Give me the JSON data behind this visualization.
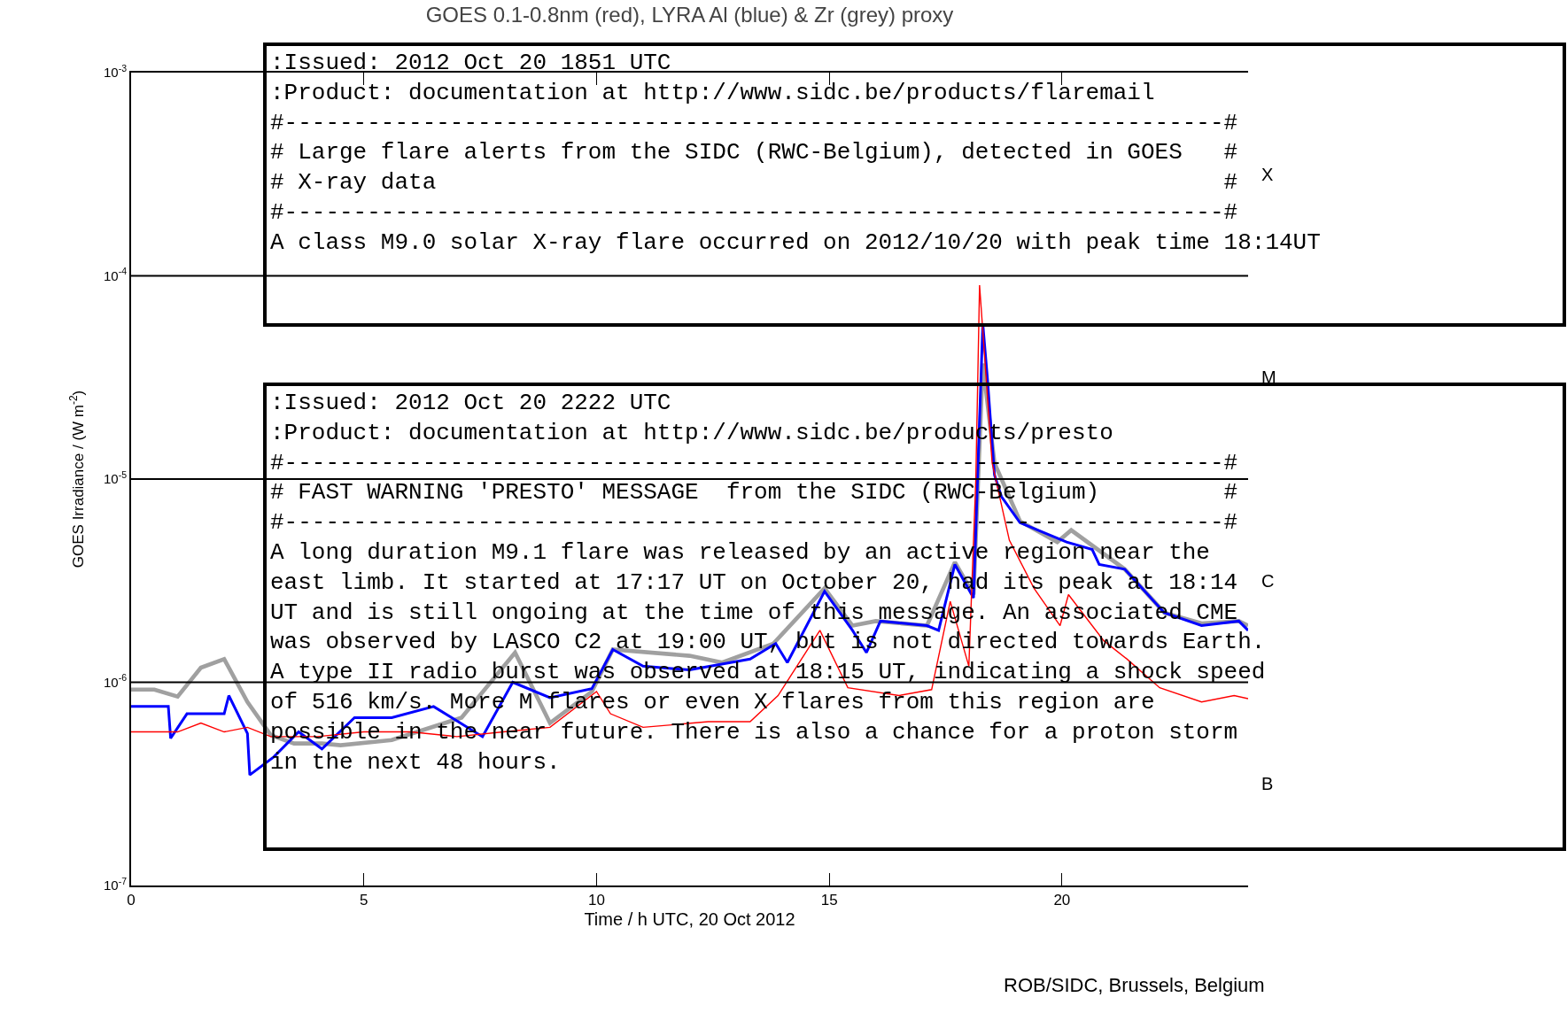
{
  "chart_data": {
    "type": "line",
    "title": "GOES 0.1-0.8nm (red), LYRA Al (blue) & Zr (grey) proxy",
    "xlabel": "Time / h UTC, 20 Oct 2012",
    "ylabel": "GOES Irradiance / (W m$^{-2}$)",
    "log": "y",
    "xlim": [
      0,
      24
    ],
    "xticks": [
      0,
      5,
      10,
      15,
      20
    ],
    "ylim": [
      1e-07,
      0.001
    ],
    "yticks": [
      {
        "value": 1e-07,
        "label": "10$^{-7}$"
      },
      {
        "value": 1e-06,
        "label": "10$^{-6}$"
      },
      {
        "value": 1e-05,
        "label": "10$^{-5}$"
      },
      {
        "value": 0.0001,
        "label": "10$^{-4}$"
      },
      {
        "value": 0.001,
        "label": "10$^{-3}$"
      }
    ],
    "marker": "none",
    "line_style": "solid",
    "ref_lines": [
      {
        "axis": "y",
        "value": 1e-06,
        "color": "#000000"
      },
      {
        "axis": "y",
        "value": 1e-05,
        "color": "#000000"
      },
      {
        "axis": "y",
        "value": 0.0001,
        "color": "#000000"
      }
    ],
    "series": [
      {
        "color": "#a0a0a0",
        "x": [
          0,
          0.5,
          1.0,
          1.5,
          2.0,
          2.5,
          3.0,
          3.5,
          4.1,
          4.5,
          5.6,
          7.1,
          8.25,
          9.0,
          9.9,
          10.35,
          12.0,
          12.7,
          13.8,
          14.9,
          15.5,
          16.0,
          17.1,
          17.7,
          18.1,
          18.3,
          18.55,
          19.1,
          19.9,
          20.2,
          21.35,
          22.2,
          23.0,
          23.8,
          24.0
        ],
        "values": [
          9.2e-07,
          9.2e-07,
          8.5e-07,
          1.18e-06,
          1.3e-06,
          8e-07,
          5.5e-07,
          5e-07,
          5e-07,
          4.9e-07,
          5.2e-07,
          6.7e-07,
          1.4e-06,
          6.3e-07,
          9e-07,
          1.45e-06,
          1.35e-06,
          1.25e-06,
          1.55e-06,
          2.9e-06,
          1.9e-06,
          2e-06,
          1.9e-06,
          3.9e-06,
          2.7e-06,
          3.7e-05,
          1.2e-05,
          6.2e-06,
          4.9e-06,
          5.6e-06,
          3.6e-06,
          2.2e-06,
          1.95e-06,
          2e-06,
          1.9e-06
        ]
      },
      {
        "color": "#0000ff",
        "x": [
          0,
          0.8,
          0.85,
          1.2,
          2.0,
          2.1,
          2.5,
          2.55,
          3.07,
          3.6,
          4.1,
          4.8,
          5.6,
          6.5,
          7.55,
          8.2,
          9.0,
          9.9,
          10.35,
          11.0,
          12.0,
          13.3,
          13.85,
          14.1,
          14.9,
          15.5,
          15.8,
          16.1,
          17.1,
          17.35,
          17.7,
          18.1,
          18.3,
          18.4,
          18.55,
          18.7,
          19.1,
          20.1,
          20.65,
          20.8,
          21.35,
          22.2,
          23.0,
          23.8,
          24.0
        ],
        "values": [
          7.6e-07,
          7.6e-07,
          5.3e-07,
          7e-07,
          7e-07,
          8.6e-07,
          5.6e-07,
          3.5e-07,
          4.3e-07,
          5.7e-07,
          4.7e-07,
          6.7e-07,
          6.7e-07,
          7.6e-07,
          5.4e-07,
          1e-06,
          8.4e-07,
          9.3e-07,
          1.45e-06,
          1.2e-06,
          1.15e-06,
          1.3e-06,
          1.55e-06,
          1.25e-06,
          2.8e-06,
          1.8e-06,
          1.4e-06,
          2e-06,
          1.9e-06,
          1.8e-06,
          3.8e-06,
          2.6e-06,
          5.8e-05,
          3.1e-05,
          1.05e-05,
          8.2e-06,
          6.1e-06,
          4.9e-06,
          4.5e-06,
          3.8e-06,
          3.6e-06,
          2.2e-06,
          1.9e-06,
          2e-06,
          1.8e-06
        ]
      },
      {
        "color": "#ff0000",
        "x": [
          0,
          1.0,
          1.5,
          2.0,
          2.5,
          3.0,
          4.0,
          5.0,
          6.0,
          7.0,
          8.0,
          9.0,
          10.0,
          10.3,
          11.0,
          12.4,
          13.3,
          13.9,
          14.8,
          15.4,
          16.5,
          17.2,
          17.6,
          18.0,
          18.15,
          18.23,
          18.5,
          18.87,
          19.4,
          19.96,
          20.14,
          20.9,
          21.4,
          22.1,
          23.0,
          23.7,
          24.0
        ],
        "values": [
          5.7e-07,
          5.7e-07,
          6.3e-07,
          5.7e-07,
          6e-07,
          5.4e-07,
          5.4e-07,
          5.7e-07,
          5.7e-07,
          5.4e-07,
          5.7e-07,
          6e-07,
          9e-07,
          7e-07,
          6e-07,
          6.4e-07,
          6.4e-07,
          8.6e-07,
          1.8e-06,
          9.4e-07,
          8.6e-07,
          9.2e-07,
          2.5e-06,
          1.2e-06,
          1e-05,
          9e-05,
          1.2e-05,
          5e-06,
          2.9e-06,
          1.9e-06,
          2.7e-06,
          1.6e-06,
          1.3e-06,
          9.4e-07,
          8e-07,
          8.6e-07,
          8.3e-07
        ]
      }
    ],
    "annotations": [
      ":Issued: 2012 Oct 20 1851 UTC\n:Product: documentation at http://www.sidc.be/products/flaremail\n#--------------------------------------------------------------------#\n# Large flare alerts from the SIDC (RWC-Belgium), detected in GOES   #\n# X-ray data                                                         #\n#--------------------------------------------------------------------#\nA class M9.0 solar X-ray flare occurred on 2012/10/20 with peak time 18:14UT",
      ":Issued: 2012 Oct 20 2222 UTC\n:Product: documentation at http://www.sidc.be/products/presto\n#--------------------------------------------------------------------#\n# FAST WARNING 'PRESTO' MESSAGE  from the SIDC (RWC-Belgium)         #\n#--------------------------------------------------------------------#\nA long duration M9.1 flare was released by an active region near the\neast limb. It started at 17:17 UT on October 20, had its peak at 18:14\nUT and is still ongoing at the time of this message. An associated CME\nwas observed by LASCO C2 at 19:00 UT, but is not directed towards Earth.\nA type II radio burst was observed at 18:15 UT, indicating a shock speed\nof 516 km/s. More M flares or even X flares from this region are\npossible in the near future. There is also a chance for a proton storm\nin the next 48 hours.",
      "ROB/SIDC, Brussels, Belgium",
      "X",
      "M",
      "C",
      "B"
    ]
  }
}
